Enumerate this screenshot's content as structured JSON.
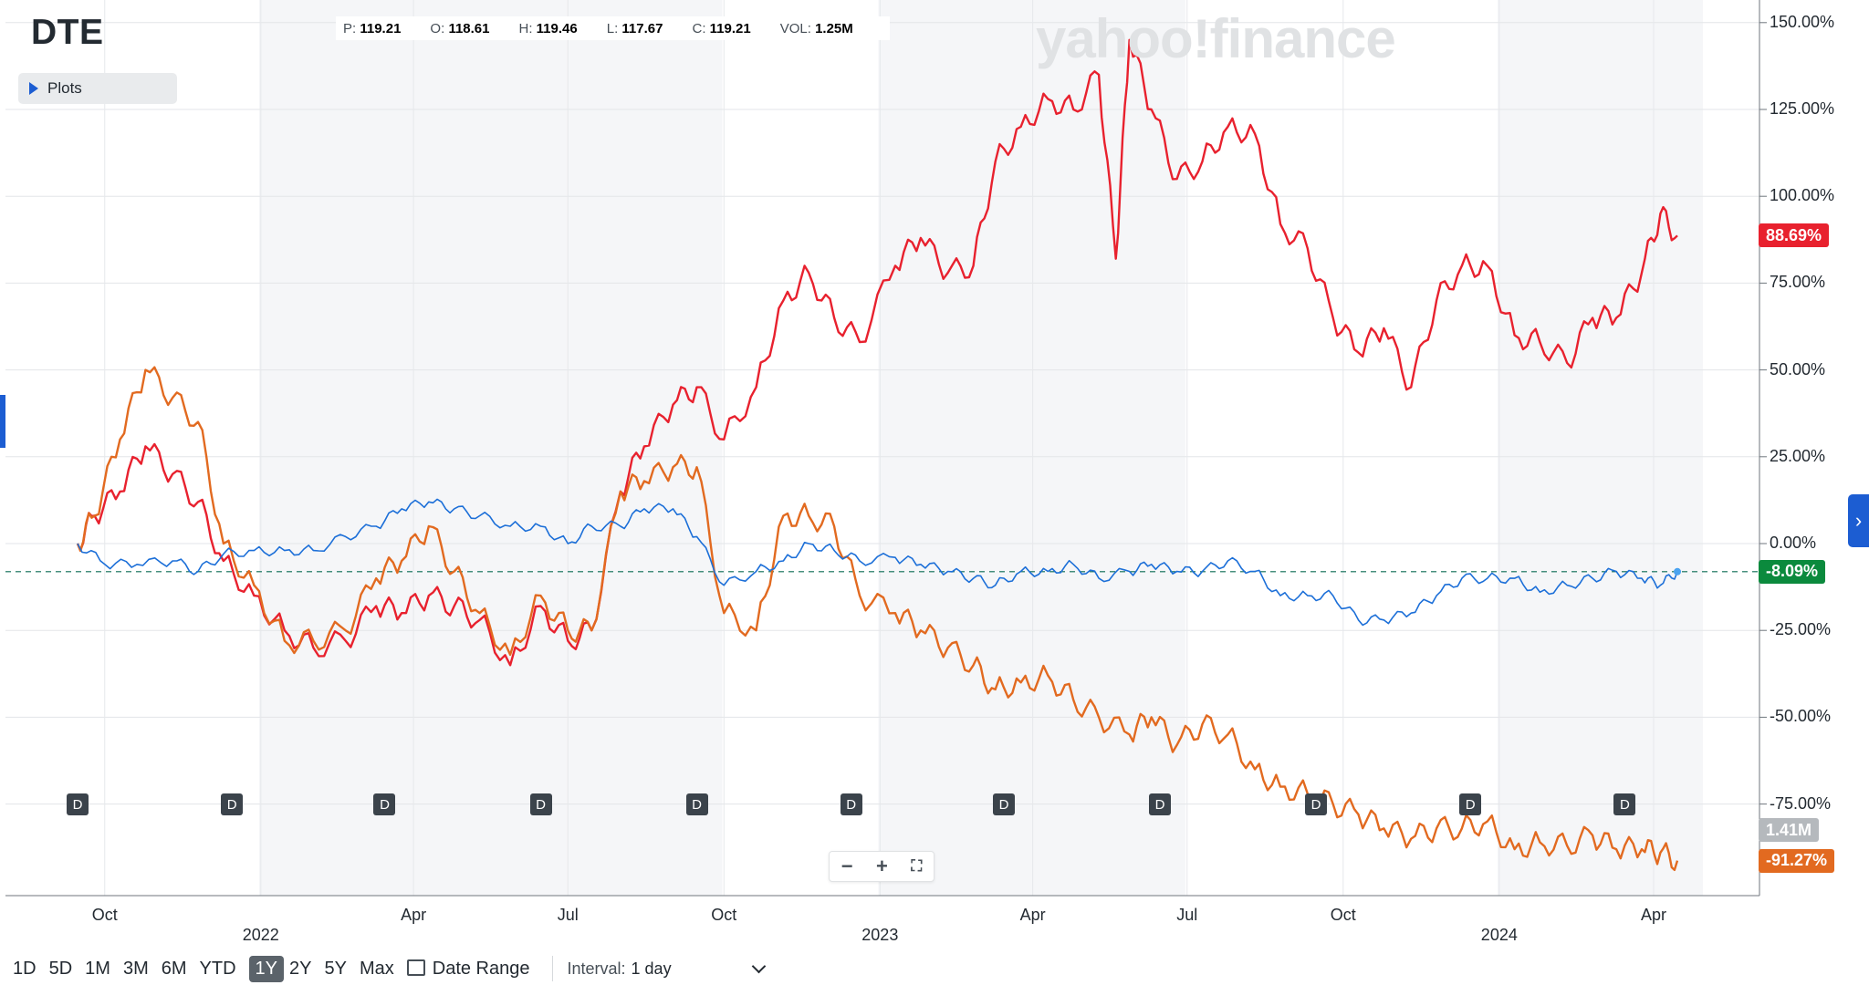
{
  "ticker": "DTE",
  "plots_button": "Plots",
  "ohlc": [
    {
      "key": "P:",
      "value": "119.21"
    },
    {
      "key": "O:",
      "value": "118.61"
    },
    {
      "key": "H:",
      "value": "119.46"
    },
    {
      "key": "L:",
      "value": "117.67"
    },
    {
      "key": "C:",
      "value": "119.21"
    },
    {
      "key": "VOL:",
      "value": "1.25M"
    }
  ],
  "watermark": "yahoo!finance",
  "badges": {
    "red": "88.69%",
    "green": "-8.09%",
    "volume": "1.41M",
    "orange": "-91.27%"
  },
  "colors": {
    "red_series": "#e8212e",
    "orange_series": "#e26a20",
    "blue_series": "#1c6fd8",
    "green_badge": "#0b8a3d",
    "volume_badge": "#b5b9bd",
    "accent": "#1c5dd2"
  },
  "dividend_marker": "D",
  "zoom_controls": {
    "zoom_out": "−",
    "zoom_in": "+",
    "fullscreen": "⛶"
  },
  "toolbar": {
    "ranges": [
      "1D",
      "5D",
      "1M",
      "3M",
      "6M",
      "YTD",
      "1Y",
      "2Y",
      "5Y",
      "Max"
    ],
    "active_range": "1Y",
    "date_range": "Date Range",
    "interval_label": "Interval:",
    "interval_value": "1 day"
  },
  "chart_data": {
    "type": "line",
    "title": "",
    "y_tick_labels": [
      "150.00%",
      "125.00%",
      "100.00%",
      "75.00%",
      "50.00%",
      "25.00%",
      "0.00%",
      "-25.00%",
      "-50.00%",
      "-75.00%"
    ],
    "y_ticks": [
      150,
      125,
      100,
      75,
      50,
      25,
      0,
      -25,
      -50,
      -75
    ],
    "ylim": [
      -100,
      152
    ],
    "x_tick_labels_top": [
      "Oct",
      "Apr",
      "Jul",
      "Oct",
      "Apr",
      "Jul",
      "Oct",
      "Apr"
    ],
    "x_tick_labels_year": [
      "2022",
      "2023",
      "2024"
    ],
    "x_range": [
      "2021-09",
      "2024-04"
    ],
    "dividend_dates": [
      "2021-09",
      "2021-12",
      "2022-03",
      "2022-06",
      "2022-09",
      "2022-12",
      "2023-03",
      "2023-06",
      "2023-09",
      "2023-12",
      "2024-03"
    ],
    "reference_line": -8.09,
    "grid": true,
    "series": [
      {
        "color": "#e8212e",
        "last_value": 88.69,
        "points": [
          [
            "2021-09-15",
            0
          ],
          [
            "2021-09-25",
            8
          ],
          [
            "2021-10-10",
            15
          ],
          [
            "2021-10-25",
            28
          ],
          [
            "2021-11-10",
            20
          ],
          [
            "2021-11-25",
            12
          ],
          [
            "2021-12-10",
            -5
          ],
          [
            "2021-12-28",
            -15
          ],
          [
            "2022-01-15",
            -25
          ],
          [
            "2022-02-01",
            -30
          ],
          [
            "2022-02-20",
            -28
          ],
          [
            "2022-03-10",
            -18
          ],
          [
            "2022-03-25",
            -20
          ],
          [
            "2022-04-10",
            -15
          ],
          [
            "2022-04-25",
            -18
          ],
          [
            "2022-05-10",
            -22
          ],
          [
            "2022-05-28",
            -35
          ],
          [
            "2022-06-15",
            -18
          ],
          [
            "2022-07-01",
            -28
          ],
          [
            "2022-07-15",
            -25
          ],
          [
            "2022-08-01",
            15
          ],
          [
            "2022-08-15",
            28
          ],
          [
            "2022-09-01",
            40
          ],
          [
            "2022-09-15",
            45
          ],
          [
            "2022-10-01",
            30
          ],
          [
            "2022-10-20",
            45
          ],
          [
            "2022-11-05",
            70
          ],
          [
            "2022-11-20",
            78
          ],
          [
            "2022-12-05",
            65
          ],
          [
            "2022-12-20",
            58
          ],
          [
            "2023-01-10",
            80
          ],
          [
            "2023-01-25",
            88
          ],
          [
            "2023-02-10",
            78
          ],
          [
            "2023-02-25",
            80
          ],
          [
            "2023-03-10",
            110
          ],
          [
            "2023-03-25",
            120
          ],
          [
            "2023-04-10",
            128
          ],
          [
            "2023-04-25",
            125
          ],
          [
            "2023-05-10",
            135
          ],
          [
            "2023-05-20",
            82
          ],
          [
            "2023-05-28",
            145
          ],
          [
            "2023-06-10",
            125
          ],
          [
            "2023-06-25",
            105
          ],
          [
            "2023-07-10",
            110
          ],
          [
            "2023-07-25",
            120
          ],
          [
            "2023-08-10",
            118
          ],
          [
            "2023-08-25",
            92
          ],
          [
            "2023-09-10",
            85
          ],
          [
            "2023-09-25",
            65
          ],
          [
            "2023-10-10",
            55
          ],
          [
            "2023-10-25",
            62
          ],
          [
            "2023-11-10",
            45
          ],
          [
            "2023-11-25",
            70
          ],
          [
            "2023-12-10",
            80
          ],
          [
            "2023-12-25",
            80
          ],
          [
            "2024-01-10",
            60
          ],
          [
            "2024-01-25",
            58
          ],
          [
            "2024-02-10",
            52
          ],
          [
            "2024-02-25",
            65
          ],
          [
            "2024-03-10",
            65
          ],
          [
            "2024-03-25",
            78
          ],
          [
            "2024-04-05",
            95
          ],
          [
            "2024-04-15",
            88.69
          ]
        ]
      },
      {
        "color": "#e26a20",
        "last_value": -91.27,
        "points": [
          [
            "2021-09-15",
            0
          ],
          [
            "2021-09-25",
            8
          ],
          [
            "2021-10-10",
            30
          ],
          [
            "2021-10-25",
            50
          ],
          [
            "2021-11-10",
            42
          ],
          [
            "2021-11-25",
            35
          ],
          [
            "2021-12-10",
            0
          ],
          [
            "2021-12-28",
            -12
          ],
          [
            "2022-01-15",
            -28
          ],
          [
            "2022-02-01",
            -28
          ],
          [
            "2022-02-20",
            -25
          ],
          [
            "2022-03-10",
            -10
          ],
          [
            "2022-03-25",
            -5
          ],
          [
            "2022-04-10",
            5
          ],
          [
            "2022-04-25",
            -8
          ],
          [
            "2022-05-10",
            -20
          ],
          [
            "2022-05-28",
            -32
          ],
          [
            "2022-06-15",
            -15
          ],
          [
            "2022-07-01",
            -25
          ],
          [
            "2022-07-15",
            -25
          ],
          [
            "2022-08-01",
            15
          ],
          [
            "2022-08-15",
            18
          ],
          [
            "2022-09-01",
            22
          ],
          [
            "2022-09-15",
            22
          ],
          [
            "2022-10-01",
            -20
          ],
          [
            "2022-10-20",
            -25
          ],
          [
            "2022-11-05",
            8
          ],
          [
            "2022-11-20",
            8
          ],
          [
            "2022-12-05",
            5
          ],
          [
            "2022-12-20",
            -15
          ],
          [
            "2023-01-10",
            -20
          ],
          [
            "2023-01-25",
            -25
          ],
          [
            "2023-02-10",
            -30
          ],
          [
            "2023-02-25",
            -35
          ],
          [
            "2023-03-10",
            -42
          ],
          [
            "2023-03-25",
            -40
          ],
          [
            "2023-04-10",
            -38
          ],
          [
            "2023-04-25",
            -45
          ],
          [
            "2023-05-10",
            -50
          ],
          [
            "2023-05-28",
            -55
          ],
          [
            "2023-06-10",
            -50
          ],
          [
            "2023-06-25",
            -58
          ],
          [
            "2023-07-10",
            -52
          ],
          [
            "2023-07-25",
            -55
          ],
          [
            "2023-08-10",
            -65
          ],
          [
            "2023-08-25",
            -70
          ],
          [
            "2023-09-10",
            -72
          ],
          [
            "2023-09-25",
            -75
          ],
          [
            "2023-10-10",
            -78
          ],
          [
            "2023-10-25",
            -82
          ],
          [
            "2023-11-10",
            -85
          ],
          [
            "2023-11-25",
            -82
          ],
          [
            "2023-12-10",
            -82
          ],
          [
            "2023-12-25",
            -80
          ],
          [
            "2024-01-10",
            -88
          ],
          [
            "2024-01-25",
            -86
          ],
          [
            "2024-02-10",
            -87
          ],
          [
            "2024-02-25",
            -84
          ],
          [
            "2024-03-10",
            -88
          ],
          [
            "2024-03-25",
            -88
          ],
          [
            "2024-04-05",
            -89
          ],
          [
            "2024-04-15",
            -91.27
          ]
        ]
      },
      {
        "color": "#1c6fd8",
        "last_value": -8.09,
        "points": [
          [
            "2021-09-15",
            0
          ],
          [
            "2021-10-01",
            -6
          ],
          [
            "2021-10-20",
            -6
          ],
          [
            "2021-11-10",
            -5
          ],
          [
            "2021-11-25",
            -8
          ],
          [
            "2021-12-10",
            -3
          ],
          [
            "2021-12-28",
            -2
          ],
          [
            "2022-01-15",
            -2
          ],
          [
            "2022-02-01",
            -2
          ],
          [
            "2022-02-20",
            2
          ],
          [
            "2022-03-10",
            5
          ],
          [
            "2022-03-25",
            10
          ],
          [
            "2022-04-10",
            12
          ],
          [
            "2022-04-25",
            10
          ],
          [
            "2022-05-10",
            8
          ],
          [
            "2022-05-28",
            5
          ],
          [
            "2022-06-15",
            5
          ],
          [
            "2022-07-01",
            0
          ],
          [
            "2022-07-15",
            5
          ],
          [
            "2022-08-01",
            5
          ],
          [
            "2022-08-15",
            10
          ],
          [
            "2022-09-01",
            10
          ],
          [
            "2022-09-15",
            2
          ],
          [
            "2022-10-01",
            -12
          ],
          [
            "2022-10-20",
            -8
          ],
          [
            "2022-11-05",
            -5
          ],
          [
            "2022-11-20",
            0
          ],
          [
            "2022-12-05",
            -2
          ],
          [
            "2022-12-20",
            -5
          ],
          [
            "2023-01-10",
            -4
          ],
          [
            "2023-01-25",
            -6
          ],
          [
            "2023-02-10",
            -8
          ],
          [
            "2023-02-25",
            -10
          ],
          [
            "2023-03-10",
            -12
          ],
          [
            "2023-03-25",
            -8
          ],
          [
            "2023-04-10",
            -8
          ],
          [
            "2023-04-25",
            -6
          ],
          [
            "2023-05-10",
            -10
          ],
          [
            "2023-05-28",
            -8
          ],
          [
            "2023-06-10",
            -6
          ],
          [
            "2023-06-25",
            -8
          ],
          [
            "2023-07-10",
            -8
          ],
          [
            "2023-07-25",
            -5
          ],
          [
            "2023-08-10",
            -8
          ],
          [
            "2023-08-25",
            -15
          ],
          [
            "2023-09-10",
            -15
          ],
          [
            "2023-09-25",
            -15
          ],
          [
            "2023-10-10",
            -22
          ],
          [
            "2023-10-25",
            -22
          ],
          [
            "2023-11-10",
            -20
          ],
          [
            "2023-11-25",
            -15
          ],
          [
            "2023-12-10",
            -10
          ],
          [
            "2023-12-25",
            -10
          ],
          [
            "2024-01-10",
            -10
          ],
          [
            "2024-01-25",
            -14
          ],
          [
            "2024-02-10",
            -12
          ],
          [
            "2024-02-25",
            -10
          ],
          [
            "2024-03-10",
            -8
          ],
          [
            "2024-03-25",
            -10
          ],
          [
            "2024-04-05",
            -12
          ],
          [
            "2024-04-15",
            -8.09
          ]
        ]
      }
    ]
  }
}
